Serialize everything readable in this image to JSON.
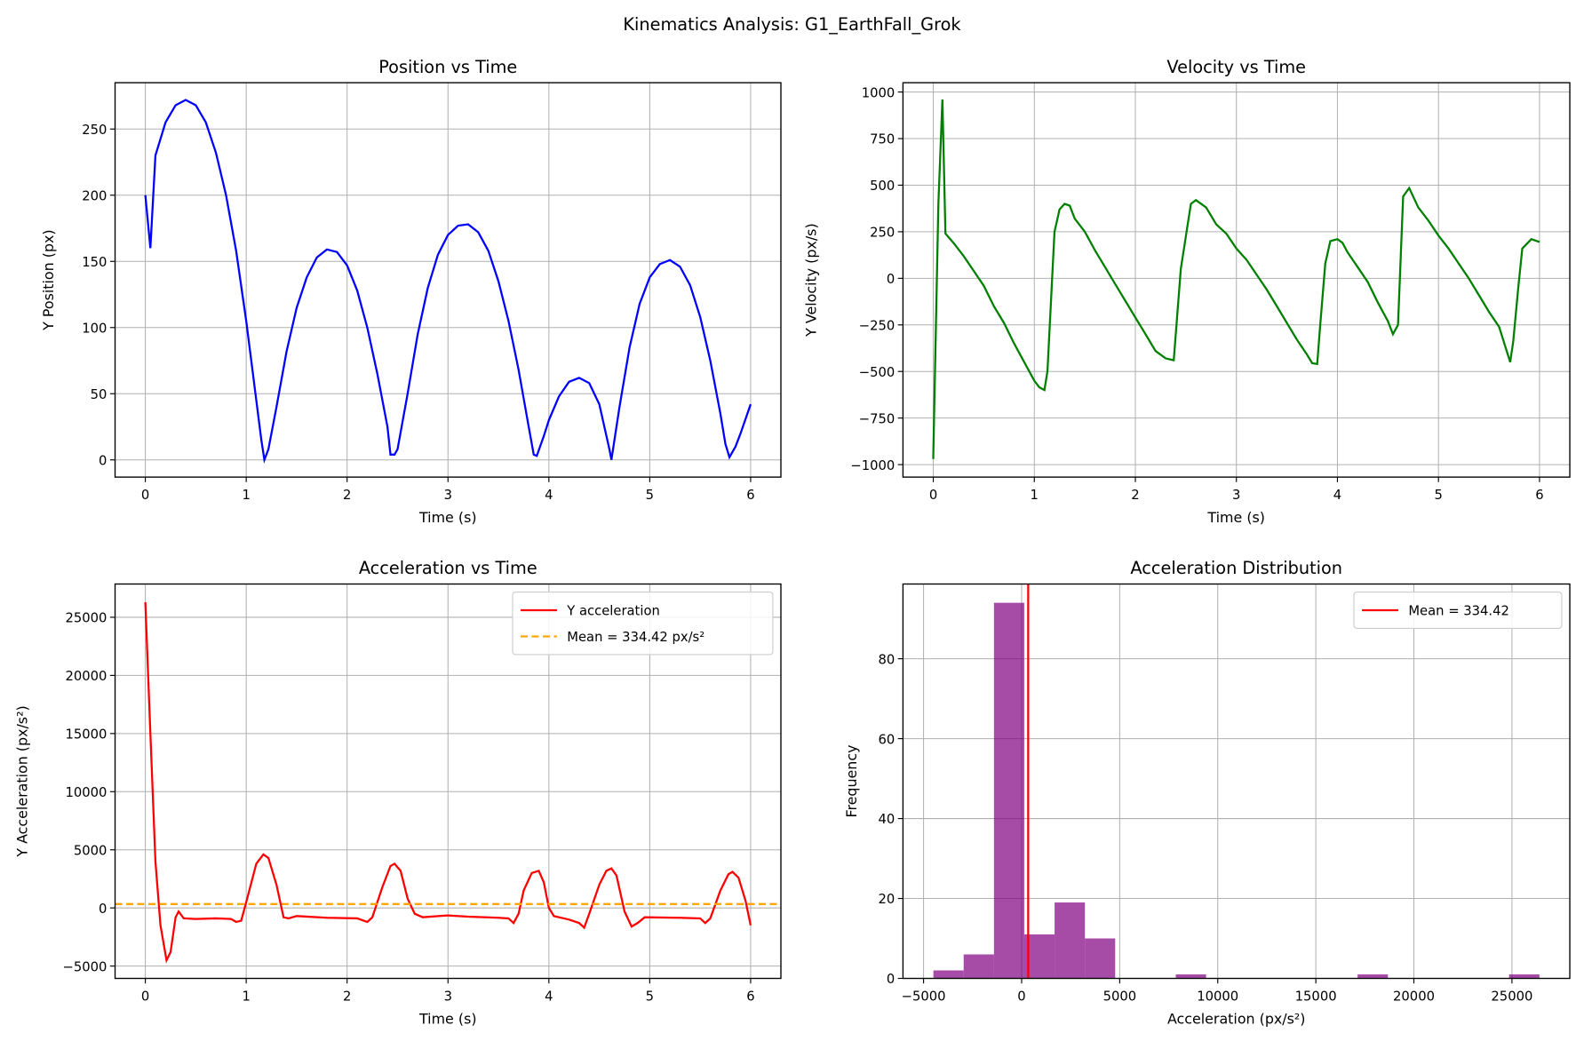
{
  "suptitle": "Kinematics Analysis: G1_EarthFall_Grok",
  "chart_data": [
    {
      "type": "line",
      "title": "Position vs Time",
      "xlabel": "Time (s)",
      "ylabel": "Y Position (px)",
      "xlim": [
        -0.3,
        6.3
      ],
      "ylim": [
        -13,
        285
      ],
      "xticks": [
        0,
        1,
        2,
        3,
        4,
        5,
        6
      ],
      "yticks": [
        0,
        50,
        100,
        150,
        200,
        250
      ],
      "grid": true,
      "color": "#0000ff",
      "x": [
        0,
        0.05,
        0.1,
        0.2,
        0.3,
        0.4,
        0.5,
        0.6,
        0.7,
        0.8,
        0.9,
        1.0,
        1.1,
        1.15,
        1.18,
        1.22,
        1.3,
        1.4,
        1.5,
        1.6,
        1.7,
        1.8,
        1.9,
        2.0,
        2.1,
        2.2,
        2.3,
        2.4,
        2.43,
        2.47,
        2.5,
        2.6,
        2.7,
        2.8,
        2.9,
        3.0,
        3.1,
        3.2,
        3.3,
        3.4,
        3.5,
        3.6,
        3.7,
        3.8,
        3.85,
        3.88,
        3.95,
        4.0,
        4.1,
        4.2,
        4.3,
        4.4,
        4.5,
        4.6,
        4.62,
        4.7,
        4.8,
        4.9,
        5.0,
        5.1,
        5.2,
        5.3,
        5.4,
        5.5,
        5.6,
        5.7,
        5.75,
        5.79,
        5.85,
        5.9,
        6.0
      ],
      "y": [
        200,
        160,
        230,
        255,
        268,
        272,
        268,
        255,
        232,
        200,
        158,
        105,
        45,
        15,
        0,
        8,
        40,
        82,
        115,
        138,
        153,
        159,
        157,
        147,
        128,
        100,
        65,
        25,
        4,
        4,
        8,
        50,
        95,
        130,
        155,
        170,
        177,
        178,
        172,
        158,
        135,
        105,
        68,
        25,
        4,
        3,
        18,
        30,
        48,
        59,
        62,
        58,
        42,
        8,
        0,
        40,
        85,
        118,
        138,
        148,
        151,
        146,
        132,
        108,
        75,
        35,
        12,
        2,
        10,
        20,
        42
      ]
    },
    {
      "type": "line",
      "title": "Velocity vs Time",
      "xlabel": "Time (s)",
      "ylabel": "Y Velocity (px/s)",
      "xlim": [
        -0.3,
        6.3
      ],
      "ylim": [
        -1067,
        1050
      ],
      "xticks": [
        0,
        1,
        2,
        3,
        4,
        5,
        6
      ],
      "yticks": [
        -1000,
        -750,
        -500,
        -250,
        0,
        250,
        500,
        750,
        1000
      ],
      "grid": true,
      "color": "#008000",
      "x": [
        0,
        0.05,
        0.09,
        0.12,
        0.2,
        0.3,
        0.4,
        0.5,
        0.6,
        0.7,
        0.8,
        0.9,
        1.0,
        1.05,
        1.1,
        1.13,
        1.2,
        1.25,
        1.3,
        1.35,
        1.4,
        1.5,
        1.6,
        1.7,
        1.8,
        1.9,
        2.0,
        2.1,
        2.2,
        2.3,
        2.38,
        2.45,
        2.55,
        2.6,
        2.7,
        2.8,
        2.9,
        3.0,
        3.1,
        3.2,
        3.3,
        3.4,
        3.5,
        3.6,
        3.7,
        3.75,
        3.8,
        3.83,
        3.88,
        3.93,
        4.0,
        4.05,
        4.1,
        4.2,
        4.3,
        4.4,
        4.5,
        4.55,
        4.6,
        4.65,
        4.71,
        4.8,
        4.9,
        5.0,
        5.1,
        5.2,
        5.3,
        5.4,
        5.5,
        5.6,
        5.71,
        5.74,
        5.79,
        5.83,
        5.92,
        6.0
      ],
      "y": [
        -970,
        400,
        960,
        240,
        190,
        120,
        40,
        -40,
        -150,
        -240,
        -350,
        -450,
        -550,
        -585,
        -600,
        -500,
        250,
        370,
        400,
        390,
        320,
        250,
        150,
        60,
        -30,
        -120,
        -210,
        -300,
        -390,
        -430,
        -440,
        50,
        400,
        420,
        380,
        290,
        240,
        160,
        100,
        20,
        -60,
        -150,
        -240,
        -330,
        -410,
        -455,
        -460,
        -250,
        80,
        200,
        210,
        190,
        140,
        60,
        -20,
        -130,
        -230,
        -300,
        -250,
        440,
        485,
        380,
        310,
        230,
        160,
        80,
        0,
        -90,
        -180,
        -260,
        -450,
        -340,
        -50,
        160,
        210,
        195
      ]
    },
    {
      "type": "line",
      "title": "Acceleration vs Time",
      "xlabel": "Time (s)",
      "ylabel": "Y Acceleration (px/s²)",
      "xlim": [
        -0.3,
        6.3
      ],
      "ylim": [
        -6060,
        27860
      ],
      "xticks": [
        0,
        1,
        2,
        3,
        4,
        5,
        6
      ],
      "yticks": [
        -5000,
        0,
        5000,
        10000,
        15000,
        20000,
        25000
      ],
      "grid": true,
      "legend": "top-right",
      "series": [
        {
          "name": "Y acceleration",
          "color": "#ff0000",
          "style": "solid",
          "x": [
            0,
            0.05,
            0.1,
            0.15,
            0.21,
            0.25,
            0.3,
            0.33,
            0.38,
            0.5,
            0.7,
            0.85,
            0.9,
            0.95,
            1.0,
            1.1,
            1.17,
            1.22,
            1.3,
            1.37,
            1.42,
            1.5,
            1.8,
            2.1,
            2.2,
            2.25,
            2.35,
            2.43,
            2.47,
            2.53,
            2.6,
            2.67,
            2.75,
            2.9,
            3.0,
            3.2,
            3.5,
            3.6,
            3.65,
            3.7,
            3.75,
            3.83,
            3.9,
            3.95,
            4.0,
            4.05,
            4.2,
            4.3,
            4.35,
            4.4,
            4.5,
            4.57,
            4.62,
            4.67,
            4.75,
            4.82,
            4.88,
            4.95,
            5.3,
            5.5,
            5.55,
            5.6,
            5.7,
            5.78,
            5.82,
            5.88,
            5.95,
            6.0
          ],
          "y": [
            26300,
            15000,
            4000,
            -1500,
            -4500,
            -3800,
            -800,
            -300,
            -900,
            -950,
            -900,
            -950,
            -1200,
            -1100,
            500,
            3800,
            4600,
            4300,
            2000,
            -800,
            -900,
            -700,
            -850,
            -900,
            -1200,
            -800,
            1800,
            3600,
            3800,
            3200,
            800,
            -500,
            -800,
            -700,
            -650,
            -750,
            -850,
            -900,
            -1300,
            -500,
            1500,
            3000,
            3200,
            2200,
            0,
            -700,
            -1000,
            -1300,
            -1700,
            -500,
            2000,
            3200,
            3400,
            2800,
            -300,
            -1600,
            -1300,
            -800,
            -850,
            -900,
            -1300,
            -900,
            1500,
            2900,
            3100,
            2600,
            600,
            -1500
          ]
        },
        {
          "name": "Mean = 334.42 px/s²",
          "color": "#ffa500",
          "style": "dashed",
          "value": 334.42
        }
      ]
    },
    {
      "type": "bar",
      "subtype": "histogram",
      "title": "Acceleration Distribution",
      "xlabel": "Acceleration (px/s²)",
      "ylabel": "Frequency",
      "xlim": [
        -6050,
        27950
      ],
      "ylim": [
        0,
        98.7
      ],
      "xticks": [
        -5000,
        0,
        5000,
        10000,
        15000,
        20000,
        25000
      ],
      "yticks": [
        0,
        20,
        40,
        60,
        80
      ],
      "grid": true,
      "legend": "top-right",
      "color": "#800080",
      "alpha": 0.7,
      "bin_start": -4500,
      "bin_width": 1545,
      "counts": [
        2,
        6,
        94,
        11,
        19,
        10,
        0,
        0,
        1,
        0,
        0,
        0,
        0,
        0,
        1,
        0,
        0,
        0,
        0,
        1
      ],
      "mean_line": {
        "name": "Mean = 334.42",
        "value": 334.42,
        "color": "#ff0000"
      }
    }
  ]
}
